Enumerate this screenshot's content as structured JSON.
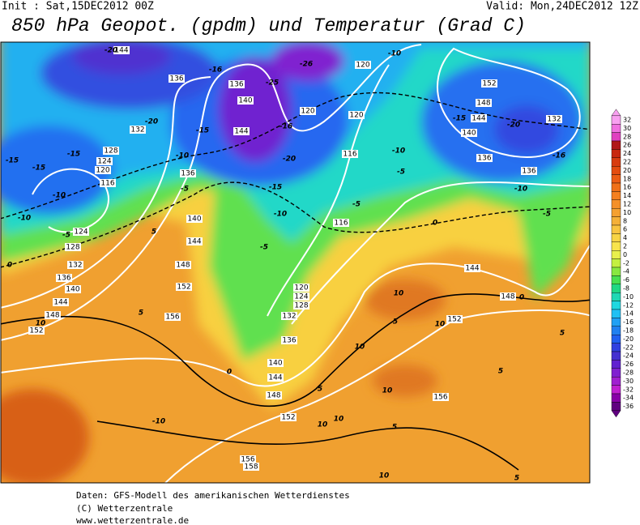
{
  "header": {
    "init": "Init : Sat,15DEC2012 00Z",
    "valid": "Valid: Mon,24DEC2012 12Z",
    "title": "850 hPa Geopot. (gpdm) und Temperatur (Grad C)"
  },
  "map": {
    "geopotential_labels": [
      144,
      136,
      136,
      140,
      144,
      120,
      120,
      120,
      116,
      132,
      128,
      124,
      120,
      116,
      124,
      128,
      132,
      136,
      140,
      144,
      148,
      152,
      136,
      140,
      144,
      148,
      152,
      156,
      116,
      120,
      124,
      128,
      132,
      136,
      140,
      144,
      148,
      152,
      156,
      158,
      156,
      152,
      148,
      144,
      152,
      148,
      144,
      140,
      136,
      136,
      132
    ],
    "temperature_labels": [
      -20,
      -16,
      -26,
      -25,
      -16,
      -20,
      -15,
      -10,
      -20,
      -15,
      -10,
      -5,
      -15,
      -15,
      -15,
      -10,
      -10,
      -5,
      -5,
      5,
      0,
      5,
      10,
      -10,
      -10,
      -5,
      -5,
      0,
      -5,
      -10,
      -16,
      -20,
      -15,
      0,
      5,
      10,
      10,
      5,
      10,
      0,
      5,
      10,
      10,
      10,
      -10,
      5,
      5,
      10,
      5
    ]
  },
  "legend": {
    "labels": [
      32,
      30,
      28,
      26,
      24,
      22,
      20,
      18,
      16,
      14,
      12,
      10,
      8,
      6,
      4,
      2,
      0,
      -2,
      -4,
      -6,
      -8,
      -10,
      -12,
      -14,
      -16,
      -18,
      -20,
      -22,
      -24,
      -26,
      -28,
      -30,
      -32,
      -34,
      -36
    ],
    "colors": [
      "#f8a0f0",
      "#f070e0",
      "#e040c0",
      "#b01818",
      "#c82810",
      "#d83c10",
      "#e44c10",
      "#ec5c14",
      "#f07018",
      "#f48020",
      "#f49028",
      "#f4a030",
      "#f4b038",
      "#f8c440",
      "#f8d444",
      "#f8e44c",
      "#e8f04c",
      "#c4f040",
      "#88e840",
      "#48e050",
      "#20d884",
      "#20d8b4",
      "#20d8e0",
      "#20c0f4",
      "#20a0f4",
      "#2080f0",
      "#2060f0",
      "#3040e0",
      "#4430d0",
      "#6020d0",
      "#8020d0",
      "#a020d0",
      "#c020d0",
      "#8800a8",
      "#600080"
    ]
  },
  "footer": {
    "line1": "Daten: GFS-Modell des amerikanischen Wetterdienstes",
    "line2": "(C) Wetterzentrale",
    "line3": "www.wetterzentrale.de"
  }
}
